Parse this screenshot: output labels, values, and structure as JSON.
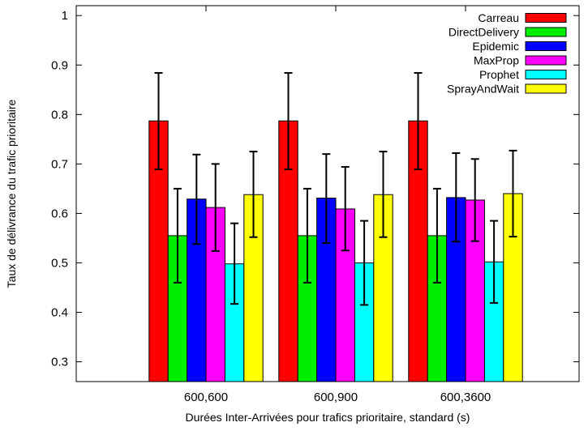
{
  "chart_data": {
    "type": "bar",
    "title": "",
    "xlabel": "Durées Inter-Arrivées pour trafics prioritaire, standard (s)",
    "ylabel": "Taux de délivrance du trafic prioritaire",
    "ylim": [
      0.26,
      1.02
    ],
    "yticks": [
      "0.3",
      "0.4",
      "0.5",
      "0.6",
      "0.7",
      "0.8",
      "0.9",
      "1"
    ],
    "categories": [
      "600,600",
      "600,900",
      "600,3600"
    ],
    "legend_position": "top-right",
    "grid": false,
    "error_bars": true,
    "series": [
      {
        "name": "Carreau",
        "color": "#ff0000",
        "values": [
          0.787,
          0.787,
          0.787
        ],
        "err_low": [
          0.689,
          0.689,
          0.689
        ],
        "err_high": [
          0.884,
          0.884,
          0.884
        ]
      },
      {
        "name": "DirectDelivery",
        "color": "#00ee00",
        "values": [
          0.555,
          0.555,
          0.555
        ],
        "err_low": [
          0.46,
          0.46,
          0.46
        ],
        "err_high": [
          0.65,
          0.65,
          0.65
        ]
      },
      {
        "name": "Epidemic",
        "color": "#0000ff",
        "values": [
          0.629,
          0.631,
          0.632
        ],
        "err_low": [
          0.538,
          0.54,
          0.543
        ],
        "err_high": [
          0.719,
          0.72,
          0.722
        ]
      },
      {
        "name": "MaxProp",
        "color": "#ff00ff",
        "values": [
          0.612,
          0.609,
          0.627
        ],
        "err_low": [
          0.524,
          0.525,
          0.544
        ],
        "err_high": [
          0.7,
          0.694,
          0.71
        ]
      },
      {
        "name": "Prophet",
        "color": "#00ffff",
        "values": [
          0.498,
          0.5,
          0.502
        ],
        "err_low": [
          0.417,
          0.415,
          0.419
        ],
        "err_high": [
          0.58,
          0.585,
          0.585
        ]
      },
      {
        "name": "SprayAndWait",
        "color": "#ffff00",
        "values": [
          0.638,
          0.638,
          0.64
        ],
        "err_low": [
          0.552,
          0.552,
          0.553
        ],
        "err_high": [
          0.725,
          0.725,
          0.727
        ]
      }
    ]
  }
}
